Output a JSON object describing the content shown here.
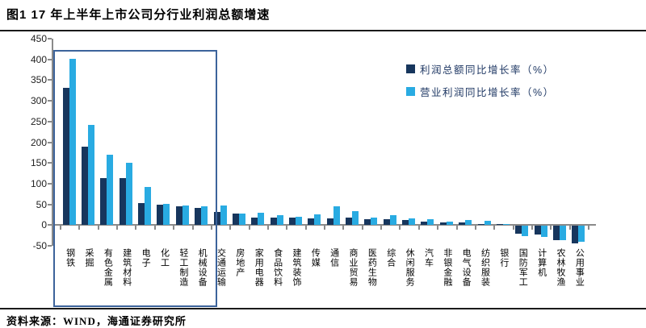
{
  "header": {
    "title": "图1  17 年上半年上市公司分行业利润总额增速"
  },
  "footer": {
    "source": "资料来源：WIND，海通证券研究所"
  },
  "colors": {
    "series_profit_total": "#17365D",
    "series_operating_profit": "#29ABE2",
    "highlight_box": "#3c639b",
    "axis": "#8a8a8a"
  },
  "chart_data": {
    "type": "bar",
    "title": "17 年上半年上市公司分行业利润总额增速",
    "categories": [
      "钢铁",
      "采掘",
      "有色金属",
      "建筑材料",
      "电子",
      "化工",
      "轻工制造",
      "机械设备",
      "交通运输",
      "房地产",
      "家用电器",
      "食品饮料",
      "建筑装饰",
      "传媒",
      "通信",
      "商业贸易",
      "医药生物",
      "综合",
      "休闲服务",
      "汽车",
      "非银金融",
      "电气设备",
      "纺织服装",
      "银行",
      "国防军工",
      "计算机",
      "农林牧渔",
      "公用事业"
    ],
    "series": [
      {
        "name": "利润总额同比增长率（%）",
        "color": "#17365D",
        "values": [
          332,
          190,
          113,
          113,
          53,
          50,
          45,
          42,
          31,
          27,
          19,
          19,
          19,
          16,
          17,
          18,
          15,
          15,
          12,
          9,
          7,
          6,
          3,
          2,
          -19,
          -21,
          -35,
          -42
        ]
      },
      {
        "name": "营业利润同比增长率（%）",
        "color": "#29ABE2",
        "values": [
          402,
          242,
          170,
          150,
          92,
          52,
          48,
          46,
          47,
          27,
          30,
          23,
          20,
          25,
          46,
          34,
          18,
          24,
          17,
          15,
          8,
          13,
          10,
          1,
          -24,
          -26,
          -35,
          -38
        ]
      }
    ],
    "ylim": [
      -50,
      450
    ],
    "yticks": [
      450,
      400,
      350,
      300,
      250,
      200,
      150,
      100,
      50,
      0,
      -50
    ],
    "xlabel": "",
    "ylabel": "",
    "grid": false,
    "legend_position": "top-right",
    "highlight_box_category_range": [
      "钢铁",
      "机械设备"
    ]
  }
}
